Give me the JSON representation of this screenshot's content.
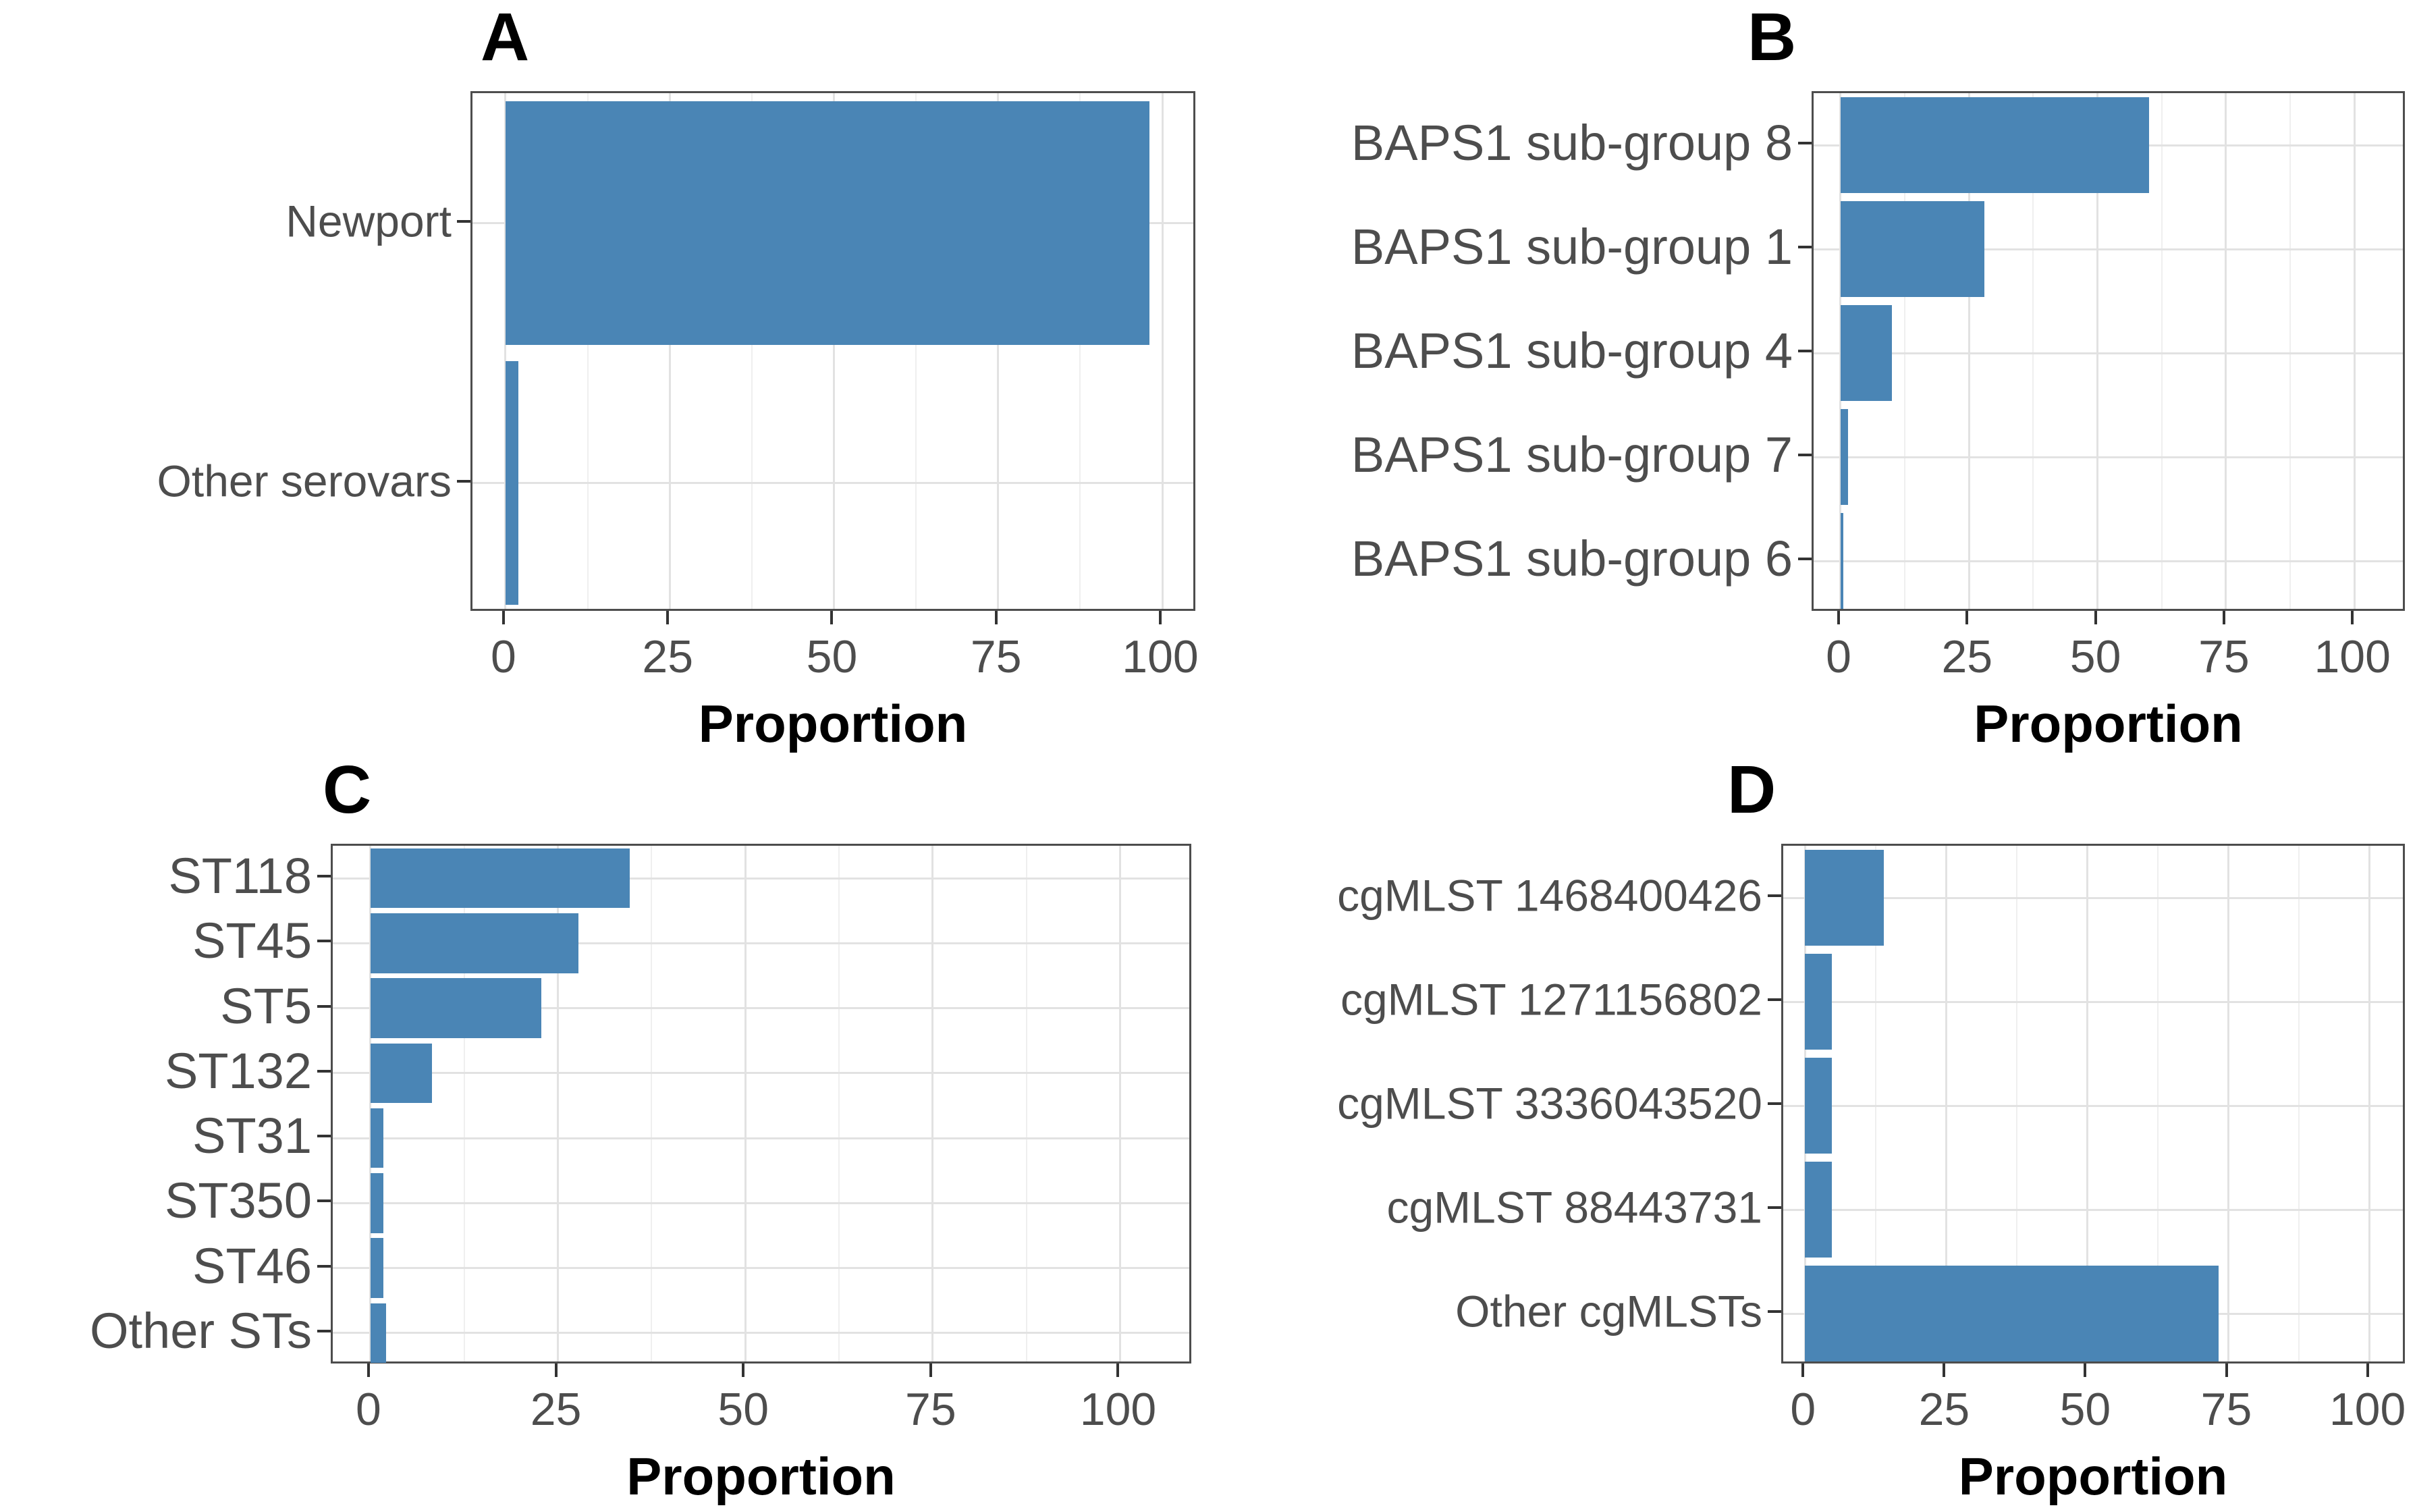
{
  "figure": {
    "background": "#ffffff",
    "bar_color": "#4a85b5",
    "panel_border_color": "#4d4d4d",
    "grid_major_color": "#e2e2e2",
    "grid_minor_color": "#efefef",
    "axis_text_color": "#4d4d4d",
    "title_color": "#000000"
  },
  "chart_data": [
    {
      "type": "bar",
      "orientation": "horizontal",
      "panel_label": "A",
      "title": "",
      "xlabel": "Proportion",
      "ylabel": "",
      "categories": [
        "Newport",
        "Other serovars"
      ],
      "values": [
        98,
        2
      ],
      "xticks": [
        0,
        25,
        50,
        75,
        100
      ],
      "xlim": [
        0,
        105
      ],
      "grid": true,
      "legend": false,
      "bar_color": "#4a85b5"
    },
    {
      "type": "bar",
      "orientation": "horizontal",
      "panel_label": "B",
      "title": "",
      "xlabel": "Proportion",
      "ylabel": "",
      "categories": [
        "BAPS1 sub-group 8",
        "BAPS1 sub-group 1",
        "BAPS1 sub-group 4",
        "BAPS1 sub-group 7",
        "BAPS1 sub-group 6"
      ],
      "values": [
        60,
        28,
        10,
        1.5,
        0.4
      ],
      "xticks": [
        0,
        25,
        50,
        75,
        100
      ],
      "xlim": [
        0,
        110
      ],
      "grid": true,
      "legend": false,
      "bar_color": "#4a85b5"
    },
    {
      "type": "bar",
      "orientation": "horizontal",
      "panel_label": "C",
      "title": "",
      "xlabel": "Proportion",
      "ylabel": "",
      "categories": [
        "ST118",
        "ST45",
        "ST5",
        "ST132",
        "ST31",
        "ST350",
        "ST46",
        "Other STs"
      ],
      "values": [
        34.6,
        27.7,
        22.8,
        8.2,
        1.7,
        1.7,
        1.7,
        2.1
      ],
      "xticks": [
        0,
        25,
        50,
        75,
        100
      ],
      "xlim": [
        0,
        110
      ],
      "grid": true,
      "legend": false,
      "bar_color": "#4a85b5"
    },
    {
      "type": "bar",
      "orientation": "horizontal",
      "panel_label": "D",
      "title": "",
      "xlabel": "Proportion",
      "ylabel": "",
      "categories": [
        "cgMLST 1468400426",
        "cgMLST 1271156802",
        "cgMLST 3336043520",
        "cgMLST 88443731",
        "Other cgMLSTs"
      ],
      "values": [
        14,
        4.7,
        4.7,
        4.7,
        73.3
      ],
      "xticks": [
        0,
        25,
        50,
        75,
        100
      ],
      "xlim": [
        0,
        108
      ],
      "grid": true,
      "legend": false,
      "bar_color": "#4a85b5"
    }
  ]
}
